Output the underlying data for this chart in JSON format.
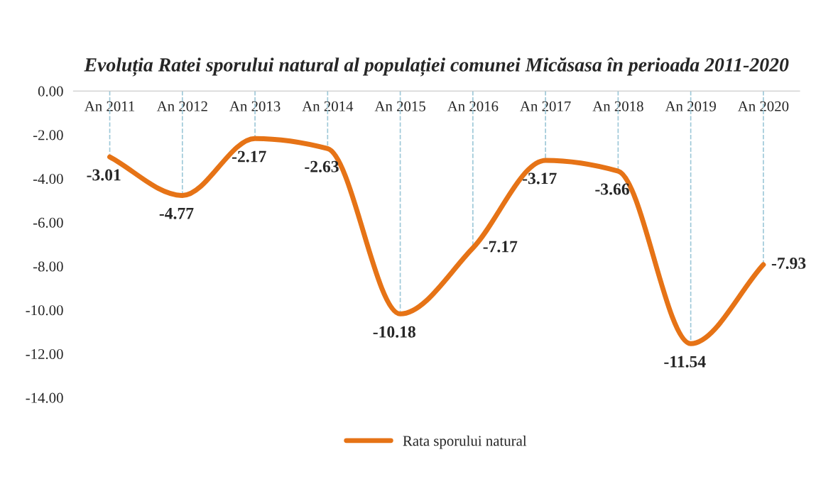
{
  "chart_data": {
    "type": "line",
    "title": "Evoluția Ratei sporului natural al populației comunei Micăsasa în perioada 2011-2020",
    "categories": [
      "An 2011",
      "An 2012",
      "An 2013",
      "An 2014",
      "An 2015",
      "An 2016",
      "An 2017",
      "An 2018",
      "An 2019",
      "An 2020"
    ],
    "series": [
      {
        "name": "Rata sporului natural",
        "color": "#e67316",
        "values": [
          -3.01,
          -4.77,
          -2.17,
          -2.63,
          -10.18,
          -7.17,
          -3.17,
          -3.66,
          -11.54,
          -7.93
        ]
      }
    ],
    "ylim": [
      -14,
      0
    ],
    "yticks": [
      {
        "value": 0,
        "label": "0.00"
      },
      {
        "value": -2,
        "label": "-2.00"
      },
      {
        "value": -4,
        "label": "-4.00"
      },
      {
        "value": -6,
        "label": "-6.00"
      },
      {
        "value": -8,
        "label": "-8.00"
      },
      {
        "value": -10,
        "label": "-10.00"
      },
      {
        "value": -12,
        "label": "-12.00"
      },
      {
        "value": -14,
        "label": "-14.00"
      }
    ],
    "data_labels": true,
    "grid": "x",
    "legend": "bottom",
    "marker": "none",
    "line_style": "solid"
  }
}
